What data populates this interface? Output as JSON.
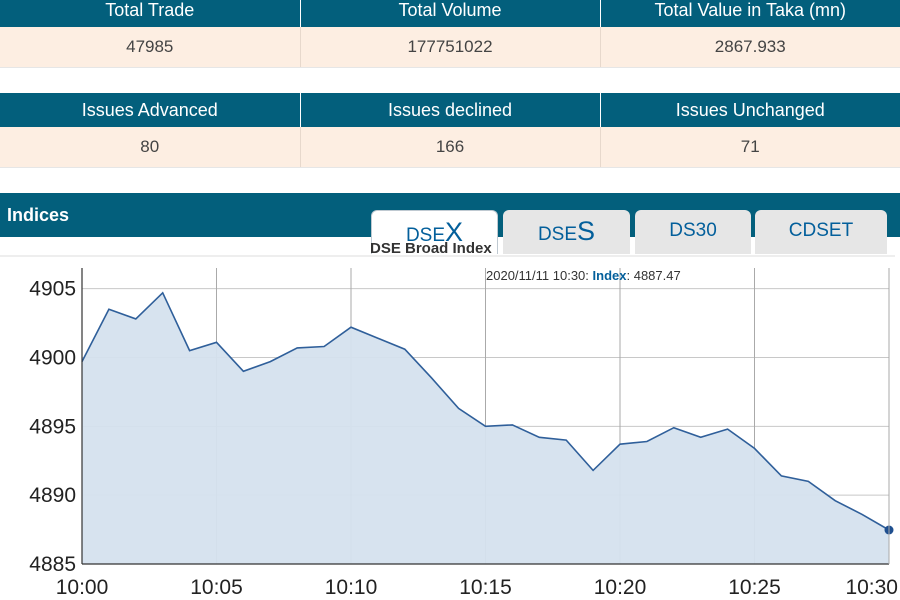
{
  "summary": {
    "headers": [
      "Total Trade",
      "Total Volume",
      "Total Value in Taka (mn)"
    ],
    "values": [
      "47985",
      "177751022",
      "2867.933"
    ]
  },
  "issues": {
    "headers": [
      "Issues Advanced",
      "Issues declined",
      "Issues Unchanged"
    ],
    "values": [
      "80",
      "166",
      "71"
    ]
  },
  "indices": {
    "title": "Indices",
    "tabs": [
      {
        "prefix": "DSE",
        "big": "X",
        "active": true
      },
      {
        "prefix": "DSE",
        "big": "S",
        "active": false
      },
      {
        "label": "DS30",
        "active": false
      },
      {
        "label": "CDSET",
        "active": false
      }
    ]
  },
  "tooltip": {
    "datetime": "2020/11/11 10:30:",
    "label": "Index",
    "value": "4887.47"
  },
  "colors": {
    "header_bg": "#035f7c",
    "row_bg": "#fdeee2",
    "line": "#2f5f9a",
    "fill": "#d5e1ee"
  },
  "chart_data": {
    "type": "area",
    "title": "DSE Broad Index",
    "x": [
      "10:00",
      "10:01",
      "10:02",
      "10:03",
      "10:04",
      "10:05",
      "10:06",
      "10:07",
      "10:08",
      "10:09",
      "10:10",
      "10:11",
      "10:12",
      "10:13",
      "10:14",
      "10:15",
      "10:16",
      "10:17",
      "10:18",
      "10:19",
      "10:20",
      "10:21",
      "10:22",
      "10:23",
      "10:24",
      "10:25",
      "10:26",
      "10:27",
      "10:28",
      "10:29",
      "10:30"
    ],
    "values": [
      4899.7,
      4903.5,
      4902.8,
      4904.7,
      4900.5,
      4901.1,
      4899.0,
      4899.7,
      4900.7,
      4900.8,
      4902.2,
      4901.4,
      4900.6,
      4898.5,
      4896.3,
      4895.0,
      4895.1,
      4894.2,
      4894.0,
      4891.8,
      4893.7,
      4893.9,
      4894.9,
      4894.2,
      4894.8,
      4893.4,
      4891.4,
      4891.0,
      4889.6,
      4888.6,
      4887.47
    ],
    "xticks": [
      "10:00",
      "10:05",
      "10:10",
      "10:15",
      "10:20",
      "10:25",
      "10:30"
    ],
    "yticks": [
      4885,
      4890,
      4895,
      4900,
      4905
    ],
    "ylim": [
      4885,
      4906.5
    ],
    "grid": true,
    "legend": "none"
  }
}
